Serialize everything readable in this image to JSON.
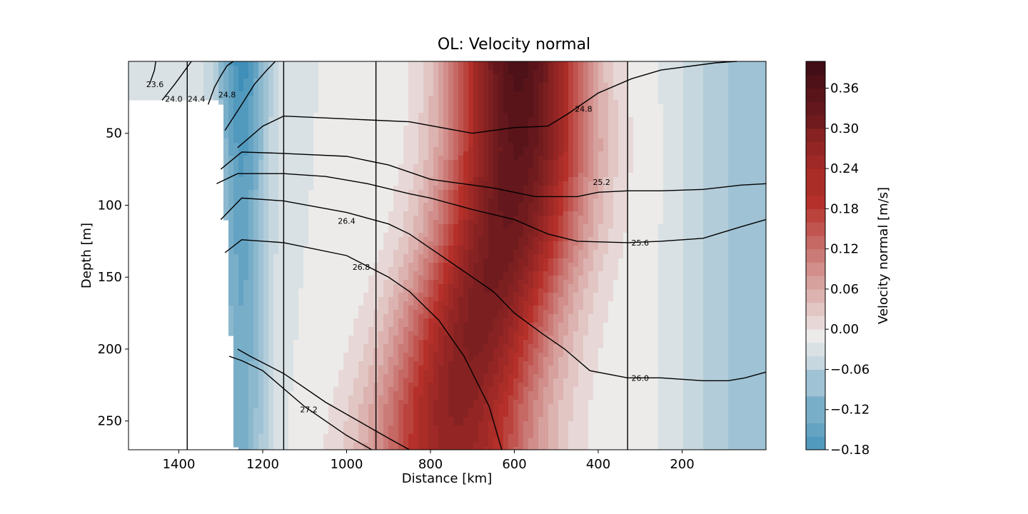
{
  "chart_data": {
    "type": "heatmap",
    "title": "OL: Velocity normal",
    "xlabel": "Distance [km]",
    "ylabel": "Depth [m]",
    "xlim": [
      1520,
      0
    ],
    "ylim": [
      270,
      0
    ],
    "x_ticks": [
      1400,
      1200,
      1000,
      800,
      600,
      400,
      200
    ],
    "y_ticks": [
      50,
      100,
      150,
      200,
      250
    ],
    "colorbar": {
      "label": "Velocity normal [m/s]",
      "min": -0.18,
      "max": 0.4,
      "ticks": [
        "0.36",
        "0.30",
        "0.24",
        "0.18",
        "0.12",
        "0.06",
        "0.00",
        "−0.06",
        "−0.12",
        "−0.18"
      ]
    },
    "colormap": {
      "negative_extreme": "#3f8fb8",
      "zero": "#ecebea",
      "positive_mid": "#b5302a",
      "positive_extreme": "#420d16"
    },
    "velocity_field": {
      "jet_core_distance_km": [
        [
          0,
          590
        ],
        [
          60,
          590
        ],
        [
          120,
          620
        ],
        [
          180,
          680
        ],
        [
          240,
          730
        ],
        [
          270,
          740
        ]
      ],
      "jet_core_peak_m_s": 0.39,
      "jet_half_width_km": 150,
      "western_negative_band_km": 1280,
      "western_negative_peak_m_s": -0.17,
      "eastern_negative_min_m_s": -0.07,
      "missing_data_west_of_km": 1280
    },
    "station_lines_km": [
      1380,
      1150,
      930,
      330
    ],
    "contours": [
      {
        "label": "23.6",
        "points": [
          [
            1470,
            16
          ],
          [
            1458,
            6
          ],
          [
            1455,
            0
          ]
        ]
      },
      {
        "label": "24.0",
        "points": [
          [
            1440,
            27
          ],
          [
            1410,
            16
          ],
          [
            1390,
            8
          ],
          [
            1370,
            0
          ]
        ]
      },
      {
        "label": "24.4",
        "points": [
          [
            1330,
            30
          ],
          [
            1315,
            18
          ],
          [
            1300,
            10
          ],
          [
            1285,
            3
          ],
          [
            1270,
            0
          ]
        ]
      },
      {
        "label": "24.8",
        "points": [
          [
            1290,
            48
          ],
          [
            1250,
            30
          ],
          [
            1220,
            16
          ],
          [
            1190,
            6
          ],
          [
            1170,
            0
          ]
        ]
      },
      {
        "label": "24.8",
        "points": [
          [
            1260,
            60
          ],
          [
            1200,
            45
          ],
          [
            1150,
            38
          ],
          [
            1000,
            40
          ],
          [
            850,
            42
          ],
          [
            700,
            50
          ],
          [
            600,
            46
          ],
          [
            520,
            45
          ],
          [
            470,
            36
          ],
          [
            400,
            22
          ],
          [
            320,
            12
          ],
          [
            250,
            6
          ],
          [
            120,
            1
          ],
          [
            70,
            0
          ]
        ]
      },
      {
        "label": "25.2",
        "points": [
          [
            1300,
            75
          ],
          [
            1250,
            63
          ],
          [
            1150,
            64
          ],
          [
            1000,
            66
          ],
          [
            900,
            72
          ],
          [
            800,
            82
          ],
          [
            650,
            88
          ],
          [
            550,
            94
          ],
          [
            450,
            94
          ],
          [
            400,
            91
          ],
          [
            330,
            90
          ],
          [
            250,
            90
          ],
          [
            150,
            89
          ],
          [
            60,
            86
          ],
          [
            0,
            85
          ]
        ]
      },
      {
        "label": "25.6",
        "points": [
          [
            1310,
            85
          ],
          [
            1260,
            78
          ],
          [
            1150,
            78
          ],
          [
            1050,
            80
          ],
          [
            950,
            85
          ],
          [
            850,
            92
          ],
          [
            800,
            95
          ],
          [
            700,
            103
          ],
          [
            600,
            110
          ],
          [
            520,
            120
          ],
          [
            450,
            125
          ],
          [
            330,
            126
          ],
          [
            250,
            125
          ],
          [
            150,
            123
          ],
          [
            60,
            115
          ],
          [
            0,
            110
          ]
        ]
      },
      {
        "label": "26.0",
        "points": [
          [
            1300,
            110
          ],
          [
            1250,
            95
          ],
          [
            1150,
            97
          ],
          [
            1000,
            105
          ],
          [
            900,
            113
          ],
          [
            850,
            120
          ],
          [
            750,
            140
          ],
          [
            650,
            160
          ],
          [
            600,
            175
          ],
          [
            530,
            190
          ],
          [
            480,
            200
          ],
          [
            420,
            215
          ],
          [
            330,
            220
          ],
          [
            250,
            220
          ],
          [
            150,
            222
          ],
          [
            90,
            222
          ],
          [
            50,
            220
          ],
          [
            0,
            216
          ]
        ]
      },
      {
        "label": "26.4",
        "points": [
          [
            1290,
            133
          ],
          [
            1250,
            124
          ],
          [
            1150,
            126
          ],
          [
            1000,
            135
          ],
          [
            900,
            150
          ],
          [
            850,
            160
          ],
          [
            780,
            180
          ],
          [
            720,
            205
          ],
          [
            660,
            240
          ],
          [
            630,
            270
          ]
        ]
      },
      {
        "label": "26.8",
        "points": [
          [
            1260,
            200
          ],
          [
            1230,
            205
          ],
          [
            1150,
            217
          ],
          [
            1050,
            237
          ],
          [
            900,
            262
          ],
          [
            850,
            270
          ]
        ]
      },
      {
        "label": "27.2",
        "points": [
          [
            1280,
            205
          ],
          [
            1250,
            208
          ],
          [
            1200,
            215
          ],
          [
            1100,
            240
          ],
          [
            1000,
            260
          ],
          [
            940,
            270
          ]
        ]
      }
    ],
    "contour_labels": [
      {
        "text": "23.6",
        "x": 1457,
        "y": 16
      },
      {
        "text": "24.0",
        "x": 1412,
        "y": 26
      },
      {
        "text": "24.4",
        "x": 1358,
        "y": 26
      },
      {
        "text": "24.8",
        "x": 1285,
        "y": 23
      },
      {
        "text": "24.8",
        "x": 435,
        "y": 33
      },
      {
        "text": "25.2",
        "x": 392,
        "y": 84
      },
      {
        "text": "25.6",
        "x": 300,
        "y": 126
      },
      {
        "text": "26.0",
        "x": 300,
        "y": 220
      },
      {
        "text": "26.4",
        "x": 1000,
        "y": 111
      },
      {
        "text": "26.8",
        "x": 965,
        "y": 143
      },
      {
        "text": "27.2",
        "x": 1090,
        "y": 242
      }
    ]
  }
}
